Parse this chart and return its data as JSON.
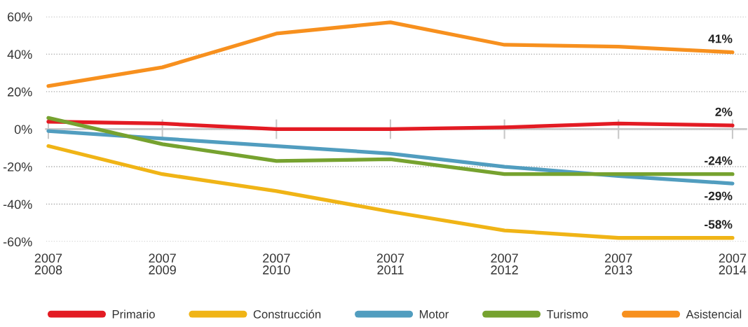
{
  "chart_data": {
    "type": "line",
    "categories": [
      "2007\n2008",
      "2007\n2009",
      "2007\n2010",
      "2007\n2011",
      "2007\n2012",
      "2007\n2013",
      "2007\n2014"
    ],
    "series": [
      {
        "name": "Primario",
        "color": "#e31b23",
        "values": [
          4,
          3,
          0,
          0,
          1,
          3,
          2
        ],
        "value_labels": [
          null,
          null,
          null,
          null,
          null,
          null,
          "2%"
        ]
      },
      {
        "name": "Construcción",
        "color": "#f0b416",
        "values": [
          -9,
          -24,
          -33,
          -44,
          -54,
          -58,
          -58
        ],
        "value_labels": [
          null,
          null,
          null,
          null,
          null,
          null,
          "-58%"
        ]
      },
      {
        "name": "Motor",
        "color": "#519dbf",
        "values": [
          -1,
          -5,
          -9,
          -13,
          -20,
          -25,
          -29
        ],
        "value_labels": [
          null,
          null,
          null,
          null,
          null,
          null,
          "-29%"
        ]
      },
      {
        "name": "Turismo",
        "color": "#76a22f",
        "values": [
          6,
          -8,
          -17,
          -16,
          -24,
          -24,
          -24
        ],
        "value_labels": [
          null,
          null,
          null,
          null,
          null,
          null,
          "-24%"
        ]
      },
      {
        "name": "Asistencial",
        "color": "#f7901e",
        "values": [
          23,
          33,
          51,
          57,
          45,
          44,
          41
        ],
        "value_labels": [
          null,
          null,
          null,
          null,
          null,
          null,
          "41%"
        ]
      }
    ],
    "ylim": [
      -60,
      60
    ],
    "yticks": [
      {
        "value": -60,
        "label": "-60%"
      },
      {
        "value": -40,
        "label": "-40%"
      },
      {
        "value": -20,
        "label": "-20%"
      },
      {
        "value": 0,
        "label": "0%"
      },
      {
        "value": 20,
        "label": "20%"
      },
      {
        "value": 40,
        "label": "40%"
      },
      {
        "value": 60,
        "label": "60%"
      }
    ],
    "grid": "y",
    "legend": "bottom",
    "line_style": "solid"
  }
}
